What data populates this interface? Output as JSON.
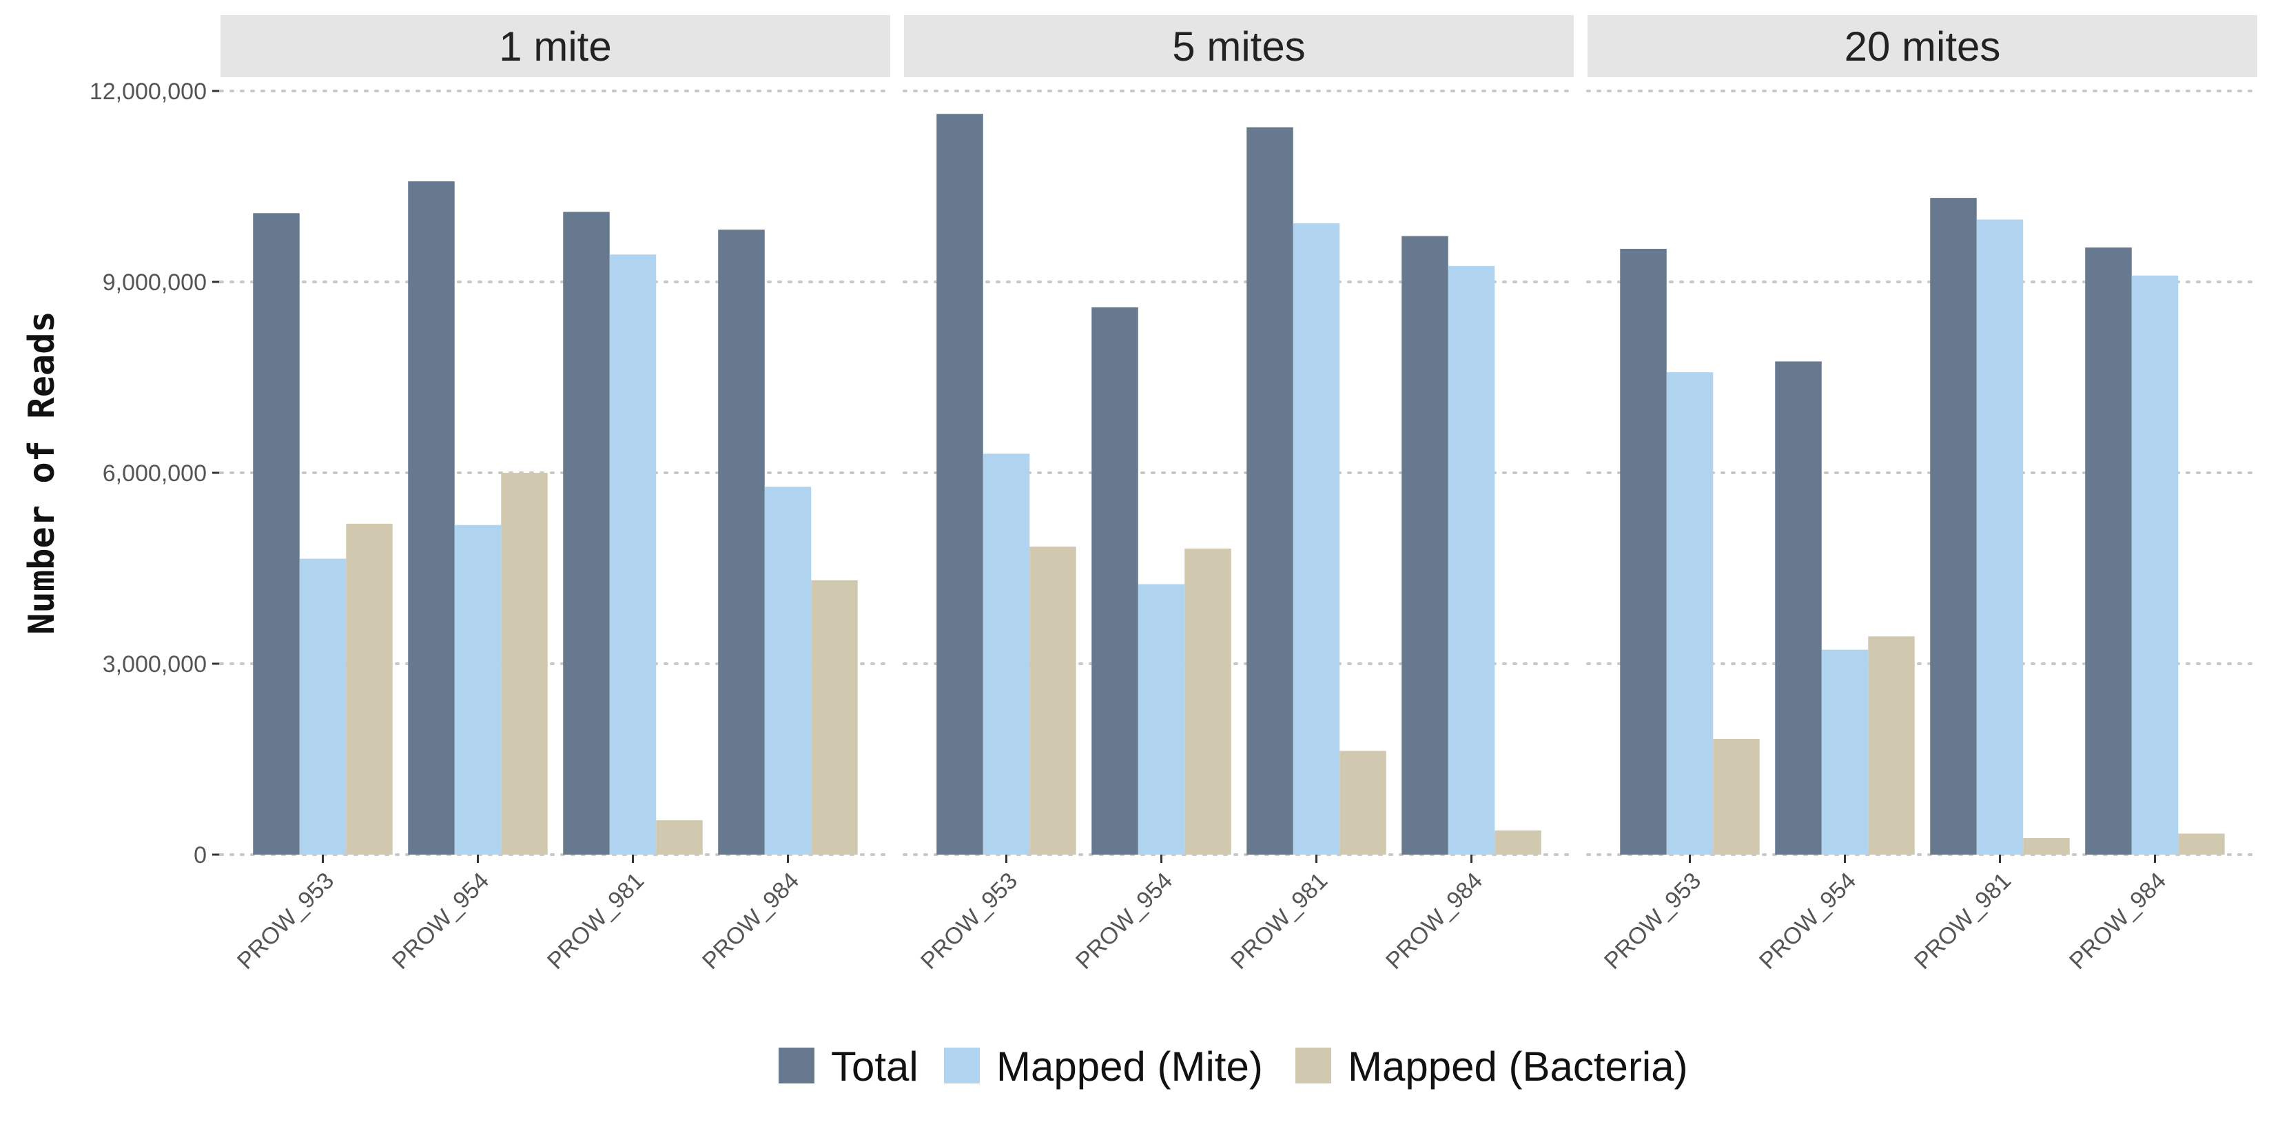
{
  "chart_data": {
    "type": "bar",
    "ylabel": "Number of Reads",
    "ylim": [
      0,
      12000000
    ],
    "yticks": [
      0,
      3000000,
      6000000,
      9000000,
      12000000
    ],
    "ytick_labels": [
      "0",
      "3,000,000",
      "6,000,000",
      "9,000,000",
      "12,000,000"
    ],
    "grid": "horizontal dotted",
    "legend_position": "bottom",
    "categories": [
      "PROW_953",
      "PROW_954",
      "PROW_981",
      "PROW_984"
    ],
    "series_meta": [
      {
        "name": "Total",
        "color": "#66798e"
      },
      {
        "name": "Mapped (Mite)",
        "color": "#b0d4ef"
      },
      {
        "name": "Mapped (Bacteria)",
        "color": "#d0c9b0"
      }
    ],
    "panels": [
      {
        "label": "1 mite",
        "series": [
          {
            "name": "Total",
            "values": [
              10080000,
              10580000,
              10100000,
              9820000
            ]
          },
          {
            "name": "Mapped (Mite)",
            "values": [
              4650000,
              5180000,
              9430000,
              5780000
            ]
          },
          {
            "name": "Mapped (Bacteria)",
            "values": [
              5200000,
              6000000,
              540000,
              4310000
            ]
          }
        ]
      },
      {
        "label": "5 mites",
        "series": [
          {
            "name": "Total",
            "values": [
              11640000,
              8600000,
              11430000,
              9720000
            ]
          },
          {
            "name": "Mapped (Mite)",
            "values": [
              6300000,
              4250000,
              9920000,
              9250000
            ]
          },
          {
            "name": "Mapped (Bacteria)",
            "values": [
              4840000,
              4810000,
              1630000,
              380000
            ]
          }
        ]
      },
      {
        "label": "20 mites",
        "series": [
          {
            "name": "Total",
            "values": [
              9520000,
              7750000,
              10320000,
              9540000
            ]
          },
          {
            "name": "Mapped (Mite)",
            "values": [
              7580000,
              3220000,
              9980000,
              9100000
            ]
          },
          {
            "name": "Mapped (Bacteria)",
            "values": [
              1820000,
              3430000,
              260000,
              330000
            ]
          }
        ]
      }
    ]
  }
}
